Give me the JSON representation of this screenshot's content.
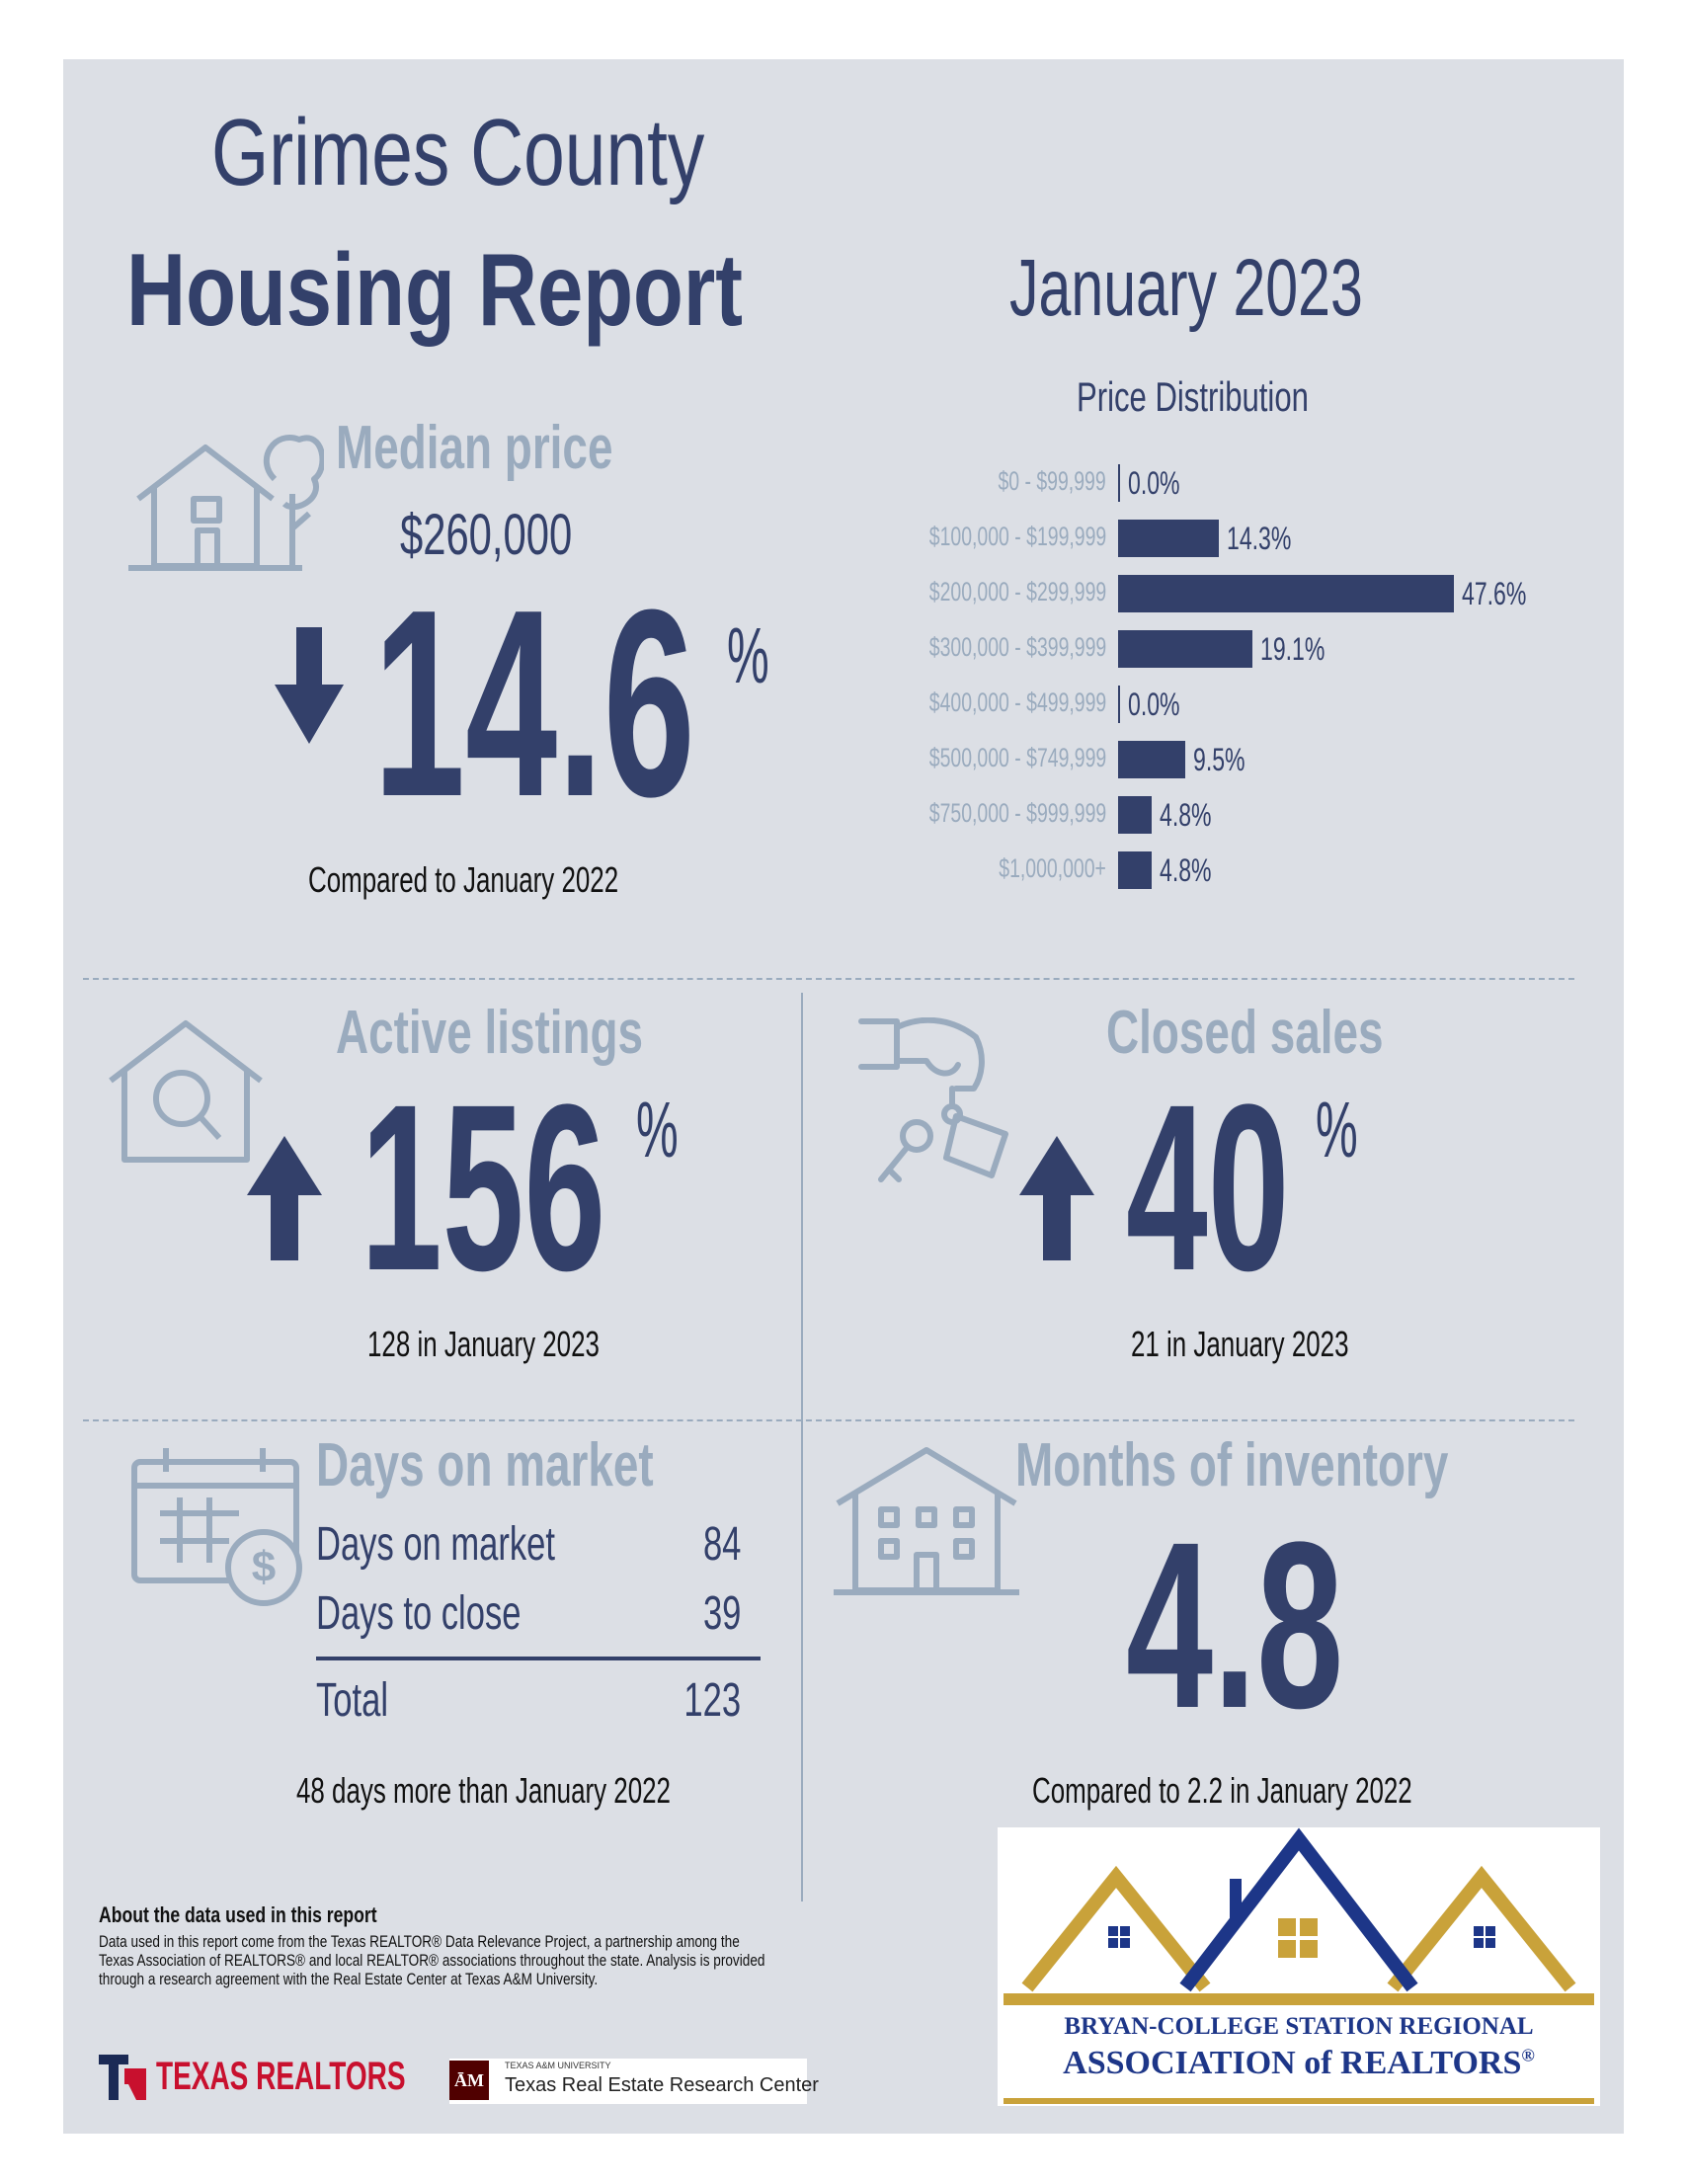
{
  "header": {
    "county": "Grimes County",
    "report": "Housing Report",
    "month": "January 2023"
  },
  "median_price": {
    "title": "Median price",
    "value": "$260,000",
    "change": "14.6",
    "percent_sign": "%",
    "direction": "down",
    "caption": "Compared to January 2022"
  },
  "chart_data": {
    "type": "bar",
    "title": "Price Distribution",
    "categories": [
      "$0 - $99,999",
      "$100,000 - $199,999",
      "$200,000 - $299,999",
      "$300,000 - $399,999",
      "$400,000 - $499,999",
      "$500,000 - $749,999",
      "$750,000 - $999,999",
      "$1,000,000+"
    ],
    "values": [
      0.0,
      14.3,
      47.6,
      19.1,
      0.0,
      9.5,
      4.8,
      4.8
    ],
    "value_labels": [
      "0.0%",
      "14.3%",
      "47.6%",
      "19.1%",
      "0.0%",
      "9.5%",
      "4.8%",
      "4.8%"
    ],
    "orientation": "horizontal",
    "bar_color": "#33406a"
  },
  "active_listings": {
    "title": "Active listings",
    "change": "156",
    "percent_sign": "%",
    "direction": "up",
    "caption": "128 in January 2023"
  },
  "closed_sales": {
    "title": "Closed sales",
    "change": "40",
    "percent_sign": "%",
    "direction": "up",
    "caption": "21 in January 2023"
  },
  "days_on_market": {
    "title": "Days on market",
    "rows": [
      {
        "label": "Days on market",
        "value": "84"
      },
      {
        "label": "Days to close",
        "value": "39"
      }
    ],
    "total_label": "Total",
    "total_value": "123",
    "caption": "48 days more than January 2022"
  },
  "months_inventory": {
    "title": "Months of inventory",
    "value": "4.8",
    "caption": "Compared to 2.2 in January 2022"
  },
  "about": {
    "title": "About the data used in this report",
    "text": "Data used in this report come from the Texas REALTOR® Data Relevance Project, a partnership among the Texas Association of REALTORS® and local REALTOR® associations throughout the state. Analysis is provided through a research agreement with the Real Estate Center at Texas A&M University."
  },
  "logos": {
    "texas_realtors": "TEXAS REALTORS",
    "tamu_small": "TEXAS A&M UNIVERSITY",
    "tamu_center": "Texas Real Estate Research Center",
    "bcs_line1": "BRYAN-COLLEGE STATION REGIONAL",
    "bcs_line2": "ASSOCIATION of REALTORS",
    "registered": "®"
  },
  "colors": {
    "navy": "#33406a",
    "muted": "#9aabbe",
    "panel": "#dcdfe5",
    "gold": "#c9a23a",
    "bcs_blue": "#1d3688"
  }
}
